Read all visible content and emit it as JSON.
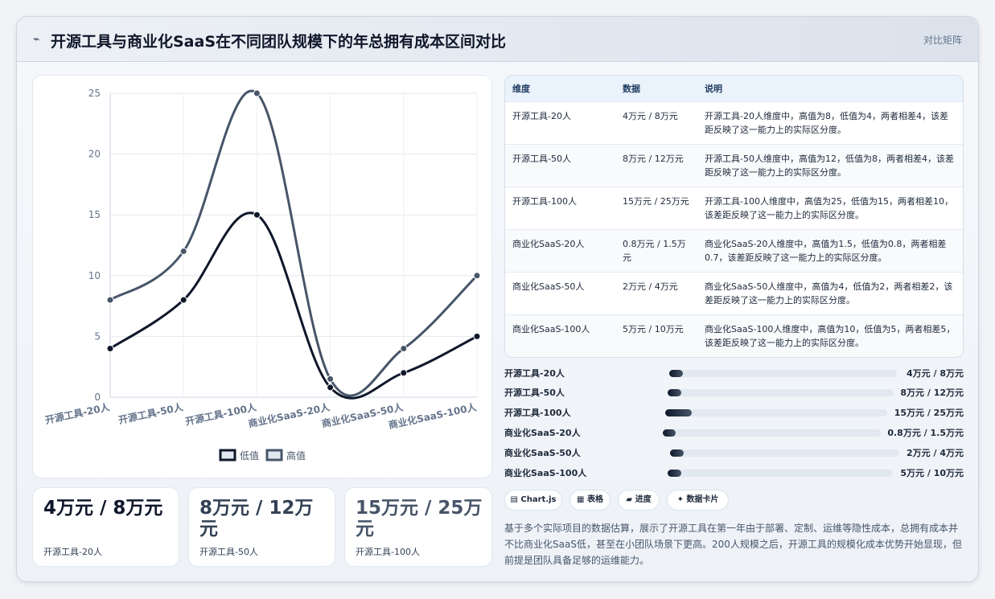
{
  "header": {
    "icon": "sparkline-icon",
    "title": "开源工具与商业化SaaS在不同团队规模下的年总拥有成本区间对比",
    "badge": "对比矩阵"
  },
  "chart_data": {
    "type": "line",
    "categories": [
      "开源工具-20人",
      "开源工具-50人",
      "开源工具-100人",
      "商业化SaaS-20人",
      "商业化SaaS-50人",
      "商业化SaaS-100人"
    ],
    "series": [
      {
        "name": "低值",
        "values": [
          4,
          8,
          15,
          0.8,
          2,
          5
        ],
        "color": "#0f172a"
      },
      {
        "name": "高值",
        "values": [
          8,
          12,
          25,
          1.5,
          4,
          10
        ],
        "color": "#475569"
      }
    ],
    "ylim": [
      0,
      25
    ],
    "yticks": [
      0,
      5,
      10,
      15,
      20,
      25
    ],
    "grid": true,
    "legend": "bottom"
  },
  "kpis": [
    {
      "value": "4万元 / 8万元",
      "label": "开源工具-20人",
      "color": "#0f172a"
    },
    {
      "value": "8万元 / 12万元",
      "label": "开源工具-50人",
      "color": "#334155"
    },
    {
      "value": "15万元 / 25万元",
      "label": "开源工具-100人",
      "color": "#475569"
    }
  ],
  "table": {
    "headers": [
      "维度",
      "数据",
      "说明"
    ],
    "rows": [
      [
        "开源工具-20人",
        "4万元 / 8万元",
        "开源工具-20人维度中，高值为8，低值为4，两者相差4，该差距反映了这一能力上的实际区分度。"
      ],
      [
        "开源工具-50人",
        "8万元 / 12万元",
        "开源工具-50人维度中，高值为12，低值为8，两者相差4，该差距反映了这一能力上的实际区分度。"
      ],
      [
        "开源工具-100人",
        "15万元 / 25万元",
        "开源工具-100人维度中，高值为25，低值为15，两者相差10，该差距反映了这一能力上的实际区分度。"
      ],
      [
        "商业化SaaS-20人",
        "0.8万元 / 1.5万元",
        "商业化SaaS-20人维度中，高值为1.5，低值为0.8，两者相差0.7，该差距反映了这一能力上的实际区分度。"
      ],
      [
        "商业化SaaS-50人",
        "2万元 / 4万元",
        "商业化SaaS-50人维度中，高值为4，低值为2，两者相差2，该差距反映了这一能力上的实际区分度。"
      ],
      [
        "商业化SaaS-100人",
        "5万元 / 10万元",
        "商业化SaaS-100人维度中，高值为10，低值为5，两者相差5，该差距反映了这一能力上的实际区分度。"
      ]
    ]
  },
  "progress": [
    {
      "label": "开源工具-20人",
      "value": "4万元 / 8万元",
      "fraction": 0.06
    },
    {
      "label": "开源工具-50人",
      "value": "8万元 / 12万元",
      "fraction": 0.06
    },
    {
      "label": "开源工具-100人",
      "value": "15万元 / 25万元",
      "fraction": 0.12
    },
    {
      "label": "商业化SaaS-20人",
      "value": "0.8万元 / 1.5万元",
      "fraction": 0.06
    },
    {
      "label": "商业化SaaS-50人",
      "value": "2万元 / 4万元",
      "fraction": 0.06
    },
    {
      "label": "商业化SaaS-100人",
      "value": "5万元 / 10万元",
      "fraction": 0.06
    }
  ],
  "tags": [
    {
      "icon": "chart-icon",
      "label": "Chart.js"
    },
    {
      "icon": "table-icon",
      "label": "表格"
    },
    {
      "icon": "progress-icon",
      "label": "进度"
    },
    {
      "icon": "card-icon",
      "label": "数据卡片"
    }
  ],
  "note": "基于多个实际项目的数据估算，展示了开源工具在第一年由于部署、定制、运维等隐性成本，总拥有成本并不比商业化SaaS低，甚至在小团队场景下更高。200人规模之后，开源工具的规模化成本优势开始显现，但前提是团队具备足够的运维能力。"
}
